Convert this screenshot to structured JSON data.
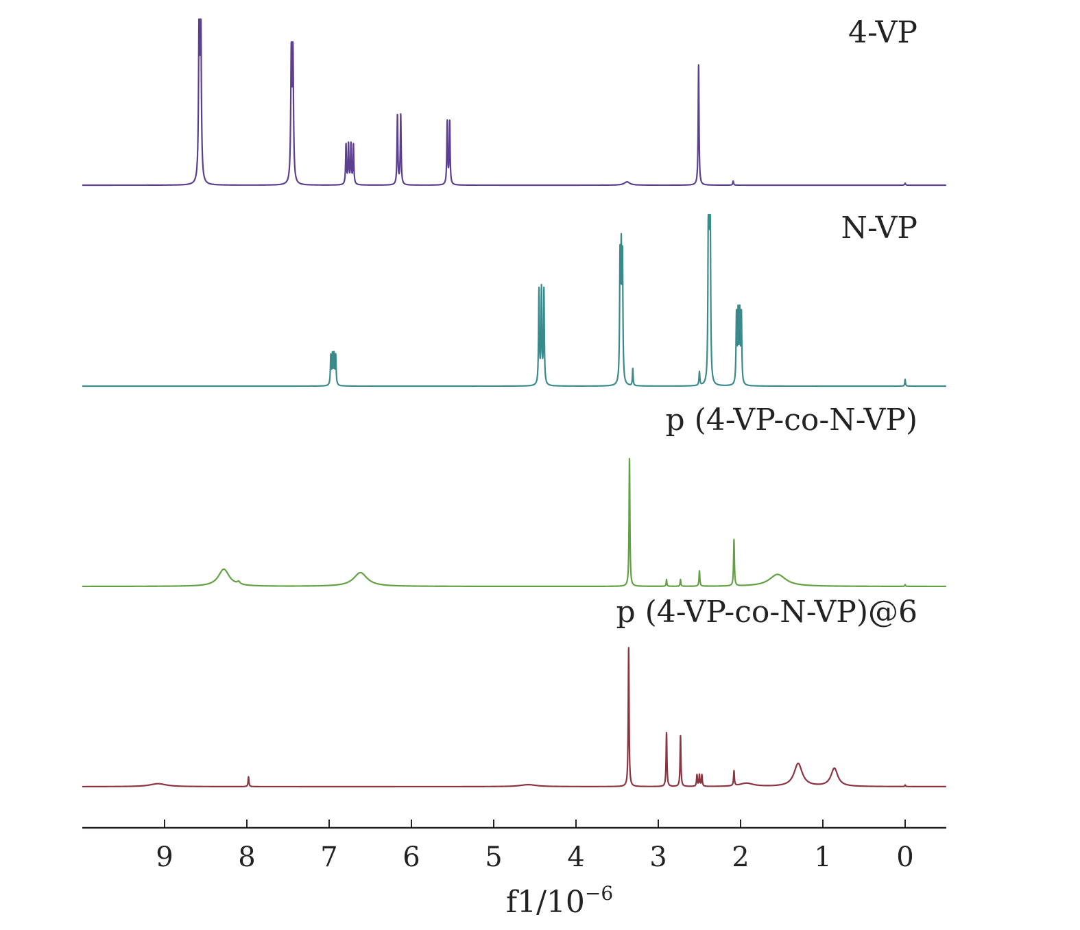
{
  "chart_data": {
    "type": "line",
    "title": "",
    "xlabel_main": "f1/10",
    "xlabel_sup": "−6",
    "xlim": [
      10,
      -0.5
    ],
    "x_reversed": true,
    "xticks": [
      9,
      8,
      7,
      6,
      5,
      4,
      3,
      2,
      1,
      0
    ],
    "y_axis_shown": false,
    "grid": false,
    "legend": "none",
    "series": [
      {
        "name": "4-VP",
        "color": "#5b3f91",
        "peaks": [
          {
            "ppm": 8.57,
            "height": 1.0,
            "width": 0.008,
            "multiplet": [
              -0.01,
              0.01
            ]
          },
          {
            "ppm": 7.45,
            "height": 0.76,
            "width": 0.008,
            "multiplet": [
              -0.01,
              0.01
            ]
          },
          {
            "ppm": 6.75,
            "height": 0.24,
            "width": 0.006,
            "multiplet": [
              -0.045,
              -0.015,
              0.015,
              0.045
            ]
          },
          {
            "ppm": 6.15,
            "height": 0.42,
            "width": 0.006,
            "multiplet": [
              -0.02,
              0.02
            ]
          },
          {
            "ppm": 5.55,
            "height": 0.38,
            "width": 0.006,
            "multiplet": [
              -0.015,
              0.015
            ]
          },
          {
            "ppm": 3.38,
            "height": 0.02,
            "width": 0.04,
            "multiplet": [
              0
            ]
          },
          {
            "ppm": 2.51,
            "height": 0.73,
            "width": 0.006,
            "multiplet": [
              0
            ]
          },
          {
            "ppm": 2.09,
            "height": 0.025,
            "width": 0.006,
            "multiplet": [
              0
            ]
          },
          {
            "ppm": 0.0,
            "height": 0.012,
            "width": 0.006,
            "multiplet": [
              0
            ]
          }
        ]
      },
      {
        "name": "N-VP",
        "color": "#3a8a8c",
        "peaks": [
          {
            "ppm": 6.95,
            "height": 0.17,
            "width": 0.006,
            "multiplet": [
              -0.03,
              -0.01,
              0.01,
              0.03
            ]
          },
          {
            "ppm": 4.42,
            "height": 0.55,
            "width": 0.006,
            "multiplet": [
              -0.03,
              0.0,
              0.03
            ]
          },
          {
            "ppm": 3.45,
            "height": 0.7,
            "width": 0.006,
            "multiplet": [
              -0.015,
              0.0,
              0.015
            ]
          },
          {
            "ppm": 3.31,
            "height": 0.1,
            "width": 0.005,
            "multiplet": [
              0
            ]
          },
          {
            "ppm": 2.5,
            "height": 0.08,
            "width": 0.006,
            "multiplet": [
              0
            ]
          },
          {
            "ppm": 2.38,
            "height": 0.83,
            "width": 0.006,
            "multiplet": [
              -0.012,
              0.0,
              0.012
            ]
          },
          {
            "ppm": 2.02,
            "height": 0.4,
            "width": 0.006,
            "multiplet": [
              -0.03,
              -0.01,
              0.01,
              0.03
            ]
          },
          {
            "ppm": 0.0,
            "height": 0.04,
            "width": 0.005,
            "multiplet": [
              0
            ]
          }
        ]
      },
      {
        "name": "p (4-VP-co-N-VP)",
        "color": "#62a143",
        "peaks": [
          {
            "ppm": 8.28,
            "height": 0.1,
            "width": 0.08,
            "multiplet": [
              0
            ]
          },
          {
            "ppm": 8.1,
            "height": 0.015,
            "width": 0.02,
            "multiplet": [
              0
            ]
          },
          {
            "ppm": 6.62,
            "height": 0.08,
            "width": 0.1,
            "multiplet": [
              0
            ]
          },
          {
            "ppm": 3.35,
            "height": 0.75,
            "width": 0.006,
            "multiplet": [
              0
            ]
          },
          {
            "ppm": 2.9,
            "height": 0.04,
            "width": 0.005,
            "multiplet": [
              0
            ]
          },
          {
            "ppm": 2.73,
            "height": 0.04,
            "width": 0.005,
            "multiplet": [
              0
            ]
          },
          {
            "ppm": 2.5,
            "height": 0.09,
            "width": 0.006,
            "multiplet": [
              0
            ]
          },
          {
            "ppm": 2.08,
            "height": 0.27,
            "width": 0.006,
            "multiplet": [
              0
            ]
          },
          {
            "ppm": 1.55,
            "height": 0.07,
            "width": 0.12,
            "multiplet": [
              0
            ]
          },
          {
            "ppm": 0.0,
            "height": 0.01,
            "width": 0.005,
            "multiplet": [
              0
            ]
          }
        ]
      },
      {
        "name": "p (4-VP-co-N-VP)@6",
        "color": "#8c3340",
        "peaks": [
          {
            "ppm": 9.08,
            "height": 0.018,
            "width": 0.12,
            "multiplet": [
              0
            ]
          },
          {
            "ppm": 7.98,
            "height": 0.06,
            "width": 0.006,
            "multiplet": [
              0
            ]
          },
          {
            "ppm": 4.58,
            "height": 0.012,
            "width": 0.12,
            "multiplet": [
              0
            ]
          },
          {
            "ppm": 3.36,
            "height": 0.85,
            "width": 0.006,
            "multiplet": [
              0
            ]
          },
          {
            "ppm": 2.9,
            "height": 0.33,
            "width": 0.006,
            "multiplet": [
              0
            ]
          },
          {
            "ppm": 2.73,
            "height": 0.31,
            "width": 0.006,
            "multiplet": [
              0
            ]
          },
          {
            "ppm": 2.5,
            "height": 0.07,
            "width": 0.006,
            "multiplet": [
              -0.03,
              0.0,
              0.03
            ]
          },
          {
            "ppm": 2.08,
            "height": 0.09,
            "width": 0.006,
            "multiplet": [
              0
            ]
          },
          {
            "ppm": 1.93,
            "height": 0.02,
            "width": 0.1,
            "multiplet": [
              0
            ]
          },
          {
            "ppm": 1.3,
            "height": 0.14,
            "width": 0.06,
            "multiplet": [
              0
            ]
          },
          {
            "ppm": 0.86,
            "height": 0.11,
            "width": 0.05,
            "multiplet": [
              0
            ]
          },
          {
            "ppm": 0.0,
            "height": 0.01,
            "width": 0.005,
            "multiplet": [
              0
            ]
          }
        ]
      }
    ]
  }
}
